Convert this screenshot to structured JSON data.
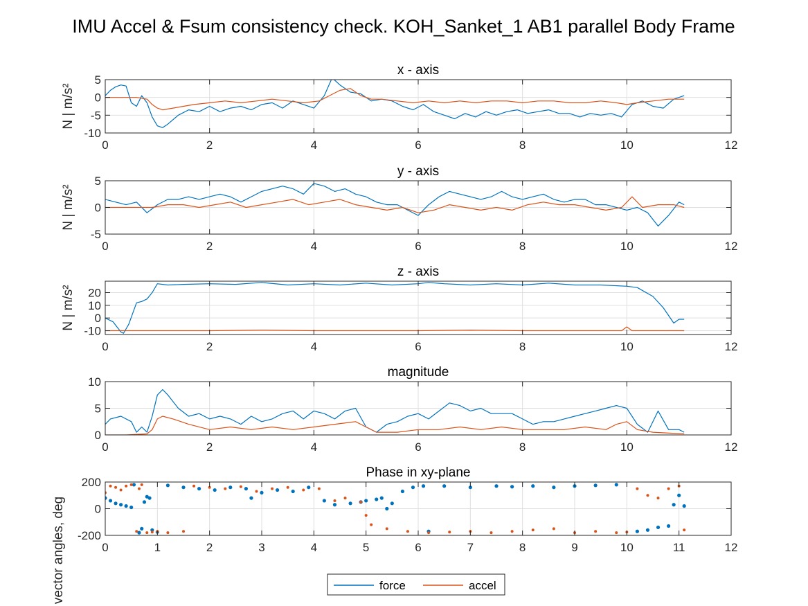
{
  "figure": {
    "suptitle": "IMU Accel & Fsum consistency check. KOH_Sanket_1     AB1     parallel  Body Frame"
  },
  "legend": {
    "entries": [
      {
        "name": "force",
        "color": "#0072BD"
      },
      {
        "name": "accel",
        "color": "#D95319"
      }
    ]
  },
  "chart_data": [
    {
      "type": "line",
      "title": "x - axis",
      "xlabel": "",
      "ylabel": "N | m/s²",
      "xlim": [
        0,
        12
      ],
      "ylim": [
        -10,
        5
      ],
      "xticks": [
        0,
        2,
        4,
        6,
        8,
        10,
        12
      ],
      "yticks": [
        -10,
        -5,
        0,
        5
      ],
      "grid": true,
      "series": [
        {
          "name": "force",
          "color": "#0072BD",
          "x": [
            0,
            0.1,
            0.2,
            0.3,
            0.4,
            0.5,
            0.6,
            0.7,
            0.8,
            0.9,
            1.0,
            1.1,
            1.2,
            1.4,
            1.6,
            1.8,
            2.0,
            2.2,
            2.4,
            2.6,
            2.8,
            3.0,
            3.2,
            3.4,
            3.6,
            3.8,
            4.0,
            4.2,
            4.35,
            4.5,
            4.7,
            4.9,
            5.1,
            5.3,
            5.5,
            5.7,
            5.9,
            6.1,
            6.3,
            6.5,
            6.7,
            6.9,
            7.1,
            7.3,
            7.5,
            7.7,
            7.9,
            8.1,
            8.3,
            8.5,
            8.7,
            8.9,
            9.1,
            9.3,
            9.5,
            9.7,
            9.9,
            10.1,
            10.3,
            10.5,
            10.7,
            10.9,
            11.1
          ],
          "y": [
            0.5,
            2.0,
            3.0,
            3.5,
            3.2,
            -1.5,
            -2.5,
            0.5,
            -1.5,
            -5.5,
            -8.0,
            -8.5,
            -7.5,
            -5.0,
            -3.5,
            -4.0,
            -2.5,
            -4.0,
            -3.0,
            -2.5,
            -3.5,
            -2.0,
            -1.5,
            -3.0,
            -1.0,
            -2.0,
            -3.0,
            0.5,
            5.5,
            3.5,
            1.5,
            1.0,
            -1.0,
            -0.5,
            -1.0,
            -2.5,
            -3.5,
            -2.0,
            -4.0,
            -5.0,
            -6.0,
            -4.5,
            -5.5,
            -4.0,
            -5.0,
            -4.0,
            -3.5,
            -4.5,
            -4.0,
            -3.5,
            -4.5,
            -4.5,
            -5.5,
            -4.5,
            -5.0,
            -4.5,
            -5.5,
            -2.0,
            -1.0,
            -2.5,
            -3.0,
            -0.5,
            0.5
          ]
        },
        {
          "name": "accel",
          "color": "#D95319",
          "x": [
            0,
            0.2,
            0.4,
            0.6,
            0.8,
            0.9,
            1.0,
            1.1,
            1.3,
            1.5,
            1.7,
            2.0,
            2.3,
            2.6,
            2.9,
            3.2,
            3.5,
            3.8,
            4.1,
            4.3,
            4.5,
            4.7,
            4.9,
            5.1,
            5.3,
            5.6,
            5.9,
            6.2,
            6.5,
            6.8,
            7.1,
            7.4,
            7.7,
            8.0,
            8.3,
            8.6,
            8.9,
            9.2,
            9.5,
            9.8,
            10.0,
            10.2,
            10.5,
            10.8,
            11.1
          ],
          "y": [
            0,
            0,
            0,
            0,
            -0.5,
            -2.0,
            -3.0,
            -3.5,
            -3.0,
            -2.5,
            -2.0,
            -1.5,
            -1.0,
            -1.5,
            -1.0,
            -0.5,
            -1.0,
            -1.5,
            -1.0,
            0.5,
            2.0,
            2.5,
            0.5,
            -0.5,
            -0.5,
            -1.0,
            -1.5,
            -1.0,
            -1.5,
            -1.0,
            -1.5,
            -1.0,
            -1.0,
            -1.5,
            -1.0,
            -1.0,
            -1.5,
            -1.5,
            -1.0,
            -1.5,
            -2.0,
            -1.5,
            -1.0,
            -0.5,
            -0.5
          ]
        }
      ]
    },
    {
      "type": "line",
      "title": "y - axis",
      "xlabel": "",
      "ylabel": "N | m/s²",
      "xlim": [
        0,
        12
      ],
      "ylim": [
        -5,
        5
      ],
      "xticks": [
        0,
        2,
        4,
        6,
        8,
        10,
        12
      ],
      "yticks": [
        -5,
        0,
        5
      ],
      "grid": true,
      "series": [
        {
          "name": "force",
          "color": "#0072BD",
          "x": [
            0,
            0.2,
            0.4,
            0.6,
            0.8,
            1.0,
            1.2,
            1.4,
            1.6,
            1.8,
            2.0,
            2.2,
            2.4,
            2.6,
            2.8,
            3.0,
            3.2,
            3.4,
            3.6,
            3.8,
            4.0,
            4.2,
            4.4,
            4.6,
            4.8,
            5.0,
            5.2,
            5.4,
            5.6,
            5.8,
            6.0,
            6.2,
            6.4,
            6.6,
            6.8,
            7.0,
            7.2,
            7.4,
            7.6,
            7.8,
            8.0,
            8.2,
            8.4,
            8.6,
            8.8,
            9.0,
            9.2,
            9.4,
            9.6,
            9.8,
            10.0,
            10.2,
            10.4,
            10.6,
            10.8,
            11.0,
            11.1
          ],
          "y": [
            1.5,
            1.0,
            0.5,
            1.0,
            -1.0,
            0.5,
            1.5,
            1.5,
            2.0,
            1.5,
            2.0,
            2.5,
            2.0,
            1.0,
            2.0,
            3.0,
            3.5,
            4.0,
            3.5,
            2.5,
            4.5,
            4.0,
            3.0,
            3.5,
            2.5,
            2.0,
            1.0,
            0.5,
            0.5,
            -0.5,
            -1.5,
            0.5,
            2.0,
            3.0,
            2.5,
            2.0,
            1.5,
            2.0,
            3.0,
            2.0,
            1.5,
            2.0,
            2.5,
            1.5,
            1.0,
            1.5,
            1.5,
            0.5,
            0.5,
            0.0,
            -0.5,
            0.0,
            -1.0,
            -3.5,
            -1.5,
            1.0,
            0.5
          ]
        },
        {
          "name": "accel",
          "color": "#D95319",
          "x": [
            0,
            0.3,
            0.6,
            0.9,
            1.2,
            1.5,
            1.8,
            2.1,
            2.4,
            2.7,
            3.0,
            3.3,
            3.6,
            3.9,
            4.2,
            4.5,
            4.8,
            5.1,
            5.4,
            5.7,
            6.0,
            6.3,
            6.6,
            6.9,
            7.2,
            7.5,
            7.8,
            8.1,
            8.4,
            8.7,
            9.0,
            9.3,
            9.6,
            9.9,
            10.1,
            10.3,
            10.6,
            10.9,
            11.1
          ],
          "y": [
            0,
            0,
            0,
            0,
            0.5,
            0.5,
            0.0,
            0.5,
            1.0,
            0.0,
            0.5,
            1.0,
            1.5,
            0.5,
            1.0,
            1.5,
            0.5,
            0.0,
            -0.5,
            0.0,
            -1.0,
            -0.5,
            0.5,
            0.0,
            -0.5,
            0.0,
            -0.5,
            0.5,
            1.0,
            0.5,
            0.5,
            0.0,
            -0.5,
            0.0,
            2.0,
            0.0,
            0.5,
            0.5,
            0.0
          ]
        }
      ]
    },
    {
      "type": "line",
      "title": "z - axis",
      "xlabel": "",
      "ylabel": "N | m/s²",
      "xlim": [
        0,
        12
      ],
      "ylim": [
        -13,
        29
      ],
      "xticks": [
        0,
        2,
        4,
        6,
        8,
        10,
        12
      ],
      "yticks": [
        -10,
        0,
        10,
        20
      ],
      "grid": true,
      "series": [
        {
          "name": "force",
          "color": "#0072BD",
          "x": [
            0,
            0.15,
            0.3,
            0.35,
            0.45,
            0.6,
            0.7,
            0.8,
            0.9,
            1.0,
            1.2,
            1.5,
            2.0,
            2.5,
            3.0,
            3.5,
            4.0,
            4.5,
            5.0,
            5.5,
            6.0,
            6.2,
            6.5,
            7.0,
            7.5,
            8.0,
            8.5,
            9.0,
            9.5,
            10.0,
            10.2,
            10.5,
            10.7,
            10.9,
            11.0,
            11.1
          ],
          "y": [
            0,
            -3,
            -11,
            -12,
            -5,
            12,
            13,
            15,
            20,
            27,
            26,
            26.5,
            27,
            26.5,
            28,
            26,
            27,
            26,
            27.5,
            26,
            27,
            28,
            27,
            26,
            27,
            26,
            27.5,
            26,
            26,
            25,
            24,
            17,
            8,
            -4,
            -1,
            -1
          ]
        },
        {
          "name": "accel",
          "color": "#D95319",
          "x": [
            0,
            1,
            2,
            3,
            4,
            5,
            6,
            7,
            8,
            9,
            9.9,
            10.0,
            10.1,
            10.5,
            11.1
          ],
          "y": [
            -10,
            -10,
            -10,
            -9.5,
            -10,
            -10,
            -10,
            -9.5,
            -10,
            -10,
            -10,
            -7,
            -10,
            -10,
            -10
          ]
        }
      ]
    },
    {
      "type": "line",
      "title": "magnitude",
      "xlabel": "",
      "ylabel": "",
      "xlim": [
        0,
        12
      ],
      "ylim": [
        0,
        10
      ],
      "xticks": [
        0,
        2,
        4,
        6,
        8,
        10,
        12
      ],
      "yticks": [
        0,
        5,
        10
      ],
      "grid": true,
      "series": [
        {
          "name": "force",
          "color": "#0072BD",
          "x": [
            0,
            0.1,
            0.3,
            0.5,
            0.6,
            0.7,
            0.8,
            0.9,
            1.0,
            1.1,
            1.2,
            1.4,
            1.6,
            1.8,
            2.0,
            2.2,
            2.4,
            2.6,
            2.8,
            3.0,
            3.2,
            3.4,
            3.6,
            3.8,
            4.0,
            4.2,
            4.4,
            4.6,
            4.8,
            5.0,
            5.2,
            5.4,
            5.6,
            5.8,
            6.0,
            6.2,
            6.4,
            6.6,
            6.8,
            7.0,
            7.2,
            7.4,
            7.6,
            7.8,
            8.0,
            8.2,
            8.4,
            8.6,
            8.8,
            9.0,
            9.2,
            9.4,
            9.6,
            9.8,
            10.0,
            10.2,
            10.4,
            10.6,
            10.8,
            11.0,
            11.1
          ],
          "y": [
            2.0,
            3.0,
            3.5,
            2.5,
            0.5,
            1.5,
            0.5,
            3.5,
            7.5,
            8.5,
            7.5,
            5.0,
            3.5,
            4.0,
            3.0,
            3.5,
            3.0,
            2.0,
            3.5,
            2.5,
            3.0,
            4.0,
            4.5,
            3.0,
            4.5,
            4.0,
            3.0,
            4.5,
            5.0,
            1.5,
            0.5,
            2.0,
            2.5,
            3.5,
            4.0,
            3.0,
            4.5,
            6.0,
            5.5,
            4.5,
            5.0,
            4.0,
            4.0,
            4.0,
            3.0,
            2.0,
            2.5,
            2.5,
            3.0,
            3.5,
            4.0,
            4.5,
            5.0,
            5.5,
            5.0,
            2.0,
            0.5,
            4.5,
            1.0,
            1.0,
            0.5
          ]
        },
        {
          "name": "accel",
          "color": "#D95319",
          "x": [
            0,
            0.4,
            0.8,
            0.9,
            1.0,
            1.1,
            1.3,
            1.6,
            2.0,
            2.4,
            2.8,
            3.2,
            3.6,
            4.0,
            4.4,
            4.8,
            5.0,
            5.2,
            5.6,
            6.0,
            6.4,
            6.8,
            7.2,
            7.6,
            8.0,
            8.4,
            8.8,
            9.2,
            9.6,
            9.8,
            10.0,
            10.2,
            10.5,
            11.1
          ],
          "y": [
            0,
            0,
            0.2,
            1.0,
            3.0,
            3.5,
            3.0,
            2.0,
            1.0,
            1.5,
            1.0,
            1.5,
            1.0,
            1.5,
            2.0,
            2.5,
            1.5,
            0.5,
            0.5,
            1.0,
            1.0,
            1.5,
            1.0,
            1.5,
            1.0,
            1.0,
            1.0,
            1.5,
            1.0,
            2.0,
            2.5,
            1.0,
            0.5,
            0.2
          ]
        }
      ]
    },
    {
      "type": "scatter",
      "title": "Phase in xy-plane",
      "xlabel": "",
      "ylabel": "vector angles, deg",
      "xlim": [
        0,
        12
      ],
      "ylim": [
        -200,
        200
      ],
      "xticks": [
        0,
        1,
        2,
        3,
        4,
        5,
        6,
        7,
        8,
        9,
        10,
        11,
        12
      ],
      "yticks": [
        -200,
        0,
        200
      ],
      "grid": true,
      "series": [
        {
          "name": "force",
          "color": "#0072BD",
          "x": [
            0,
            0.1,
            0.2,
            0.3,
            0.4,
            0.5,
            0.55,
            0.65,
            0.7,
            0.75,
            0.8,
            0.85,
            0.9,
            1.0,
            1.2,
            1.5,
            1.8,
            2.1,
            2.4,
            2.7,
            2.8,
            3.0,
            3.3,
            3.6,
            3.9,
            4.2,
            4.4,
            4.7,
            4.9,
            5.0,
            5.2,
            5.3,
            5.4,
            5.5,
            5.7,
            5.9,
            6.1,
            6.2,
            6.5,
            7.0,
            7.5,
            7.8,
            8.2,
            8.6,
            9.0,
            9.4,
            9.8,
            10.2,
            10.4,
            10.6,
            10.8,
            10.9,
            11.0,
            11.1
          ],
          "y": [
            80,
            60,
            40,
            30,
            20,
            10,
            180,
            -180,
            -150,
            50,
            90,
            80,
            -160,
            -175,
            175,
            160,
            150,
            140,
            160,
            150,
            80,
            120,
            140,
            130,
            160,
            60,
            30,
            40,
            50,
            60,
            70,
            80,
            0,
            40,
            130,
            160,
            170,
            -170,
            170,
            160,
            170,
            165,
            170,
            160,
            170,
            175,
            180,
            -170,
            -160,
            -140,
            -130,
            30,
            100,
            20
          ]
        },
        {
          "name": "accel",
          "color": "#D95319",
          "x": [
            0,
            0.1,
            0.2,
            0.3,
            0.4,
            0.5,
            0.6,
            0.65,
            0.7,
            0.8,
            0.9,
            1.0,
            1.2,
            1.5,
            1.7,
            2.0,
            2.3,
            2.6,
            2.9,
            3.2,
            3.5,
            3.8,
            4.1,
            4.4,
            4.6,
            4.9,
            5.0,
            5.1,
            5.4,
            5.8,
            6.2,
            6.6,
            7.0,
            7.4,
            7.8,
            8.2,
            8.6,
            9.0,
            9.4,
            9.8,
            10.0,
            10.2,
            10.4,
            10.6,
            10.8,
            11.0,
            11.1
          ],
          "y": [
            120,
            170,
            160,
            140,
            170,
            180,
            -170,
            150,
            180,
            -180,
            -175,
            -170,
            -180,
            -170,
            170,
            160,
            150,
            165,
            130,
            150,
            160,
            140,
            150,
            60,
            80,
            50,
            -50,
            -120,
            -150,
            -170,
            -180,
            -175,
            -170,
            -180,
            -170,
            -160,
            -150,
            -180,
            -170,
            -180,
            -175,
            150,
            100,
            80,
            150,
            170,
            -160
          ]
        }
      ]
    }
  ]
}
